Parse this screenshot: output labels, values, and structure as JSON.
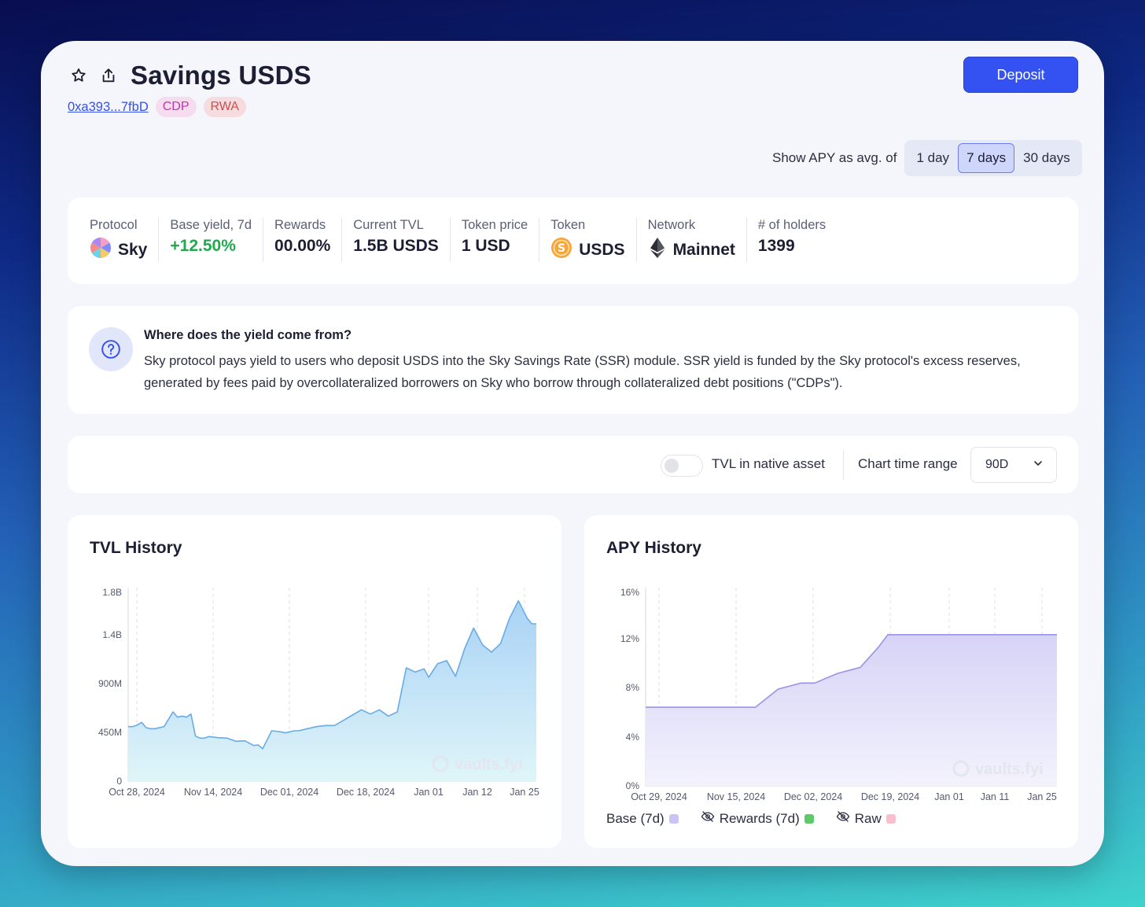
{
  "header": {
    "title": "Savings USDS",
    "address": "0xa393...7fbD",
    "tags": [
      "CDP",
      "RWA"
    ],
    "deposit_label": "Deposit",
    "star_icon": "star-icon",
    "share_icon": "share-icon"
  },
  "apy_toggle": {
    "label": "Show APY as avg. of",
    "options": [
      "1 day",
      "7 days",
      "30 days"
    ],
    "selected": "7 days"
  },
  "stats": [
    {
      "label": "Protocol",
      "value": "Sky",
      "icon": "sky-logo-icon"
    },
    {
      "label": "Base yield, 7d",
      "value": "+12.50%",
      "color": "#21a950"
    },
    {
      "label": "Rewards",
      "value": "00.00%"
    },
    {
      "label": "Current TVL",
      "value": "1.5B USDS"
    },
    {
      "label": "Token price",
      "value": "1 USD"
    },
    {
      "label": "Token",
      "value": "USDS",
      "icon": "usds-token-icon"
    },
    {
      "label": "Network",
      "value": "Mainnet",
      "icon": "ethereum-icon"
    },
    {
      "label": "# of holders",
      "value": "1399"
    }
  ],
  "info": {
    "title": "Where does the yield come from?",
    "text": "Sky protocol pays yield to users who deposit USDS into the Sky Savings Rate (SSR) module. SSR yield is funded by the Sky protocol's excess reserves, generated by fees paid by overcollateralized borrowers on Sky who borrow through collateralized debt positions (\"CDPs\")."
  },
  "controls": {
    "tvl_native_label": "TVL in native asset",
    "tvl_native_on": false,
    "range_label": "Chart time range",
    "range_value": "90D"
  },
  "watermark": "vaults.fyi",
  "chart_data": [
    {
      "type": "area",
      "title": "TVL History",
      "x_ticks": [
        "Oct 28, 2024",
        "Nov 14, 2024",
        "Dec 01, 2024",
        "Dec 18, 2024",
        "Jan 01",
        "Jan 12",
        "Jan 25"
      ],
      "y_ticks": [
        "0",
        "450M",
        "900M",
        "1.4B",
        "1.8B"
      ],
      "ylim": [
        0,
        1800000000
      ],
      "x": [
        "2024-10-27",
        "2024-10-28",
        "2024-10-29",
        "2024-10-30",
        "2024-10-31",
        "2024-11-01",
        "2024-11-02",
        "2024-11-04",
        "2024-11-06",
        "2024-11-07",
        "2024-11-08",
        "2024-11-09",
        "2024-11-10",
        "2024-11-11",
        "2024-11-12",
        "2024-11-13",
        "2024-11-14",
        "2024-11-16",
        "2024-11-18",
        "2024-11-20",
        "2024-11-22",
        "2024-11-24",
        "2024-11-25",
        "2024-11-26",
        "2024-11-28",
        "2024-11-30",
        "2024-12-01",
        "2024-12-02",
        "2024-12-03",
        "2024-12-04",
        "2024-12-06",
        "2024-12-08",
        "2024-12-10",
        "2024-12-12",
        "2024-12-14",
        "2024-12-16",
        "2024-12-18",
        "2024-12-20",
        "2024-12-22",
        "2024-12-24",
        "2024-12-26",
        "2024-12-28",
        "2024-12-30",
        "2025-01-01",
        "2025-01-02",
        "2025-01-04",
        "2025-01-06",
        "2025-01-08",
        "2025-01-10",
        "2025-01-12",
        "2025-01-14",
        "2025-01-16",
        "2025-01-18",
        "2025-01-20",
        "2025-01-22",
        "2025-01-24",
        "2025-01-25",
        "2025-01-26"
      ],
      "series": [
        {
          "values": [
            520000000,
            520000000,
            535000000,
            560000000,
            510000000,
            500000000,
            500000000,
            520000000,
            660000000,
            610000000,
            620000000,
            610000000,
            640000000,
            430000000,
            410000000,
            410000000,
            425000000,
            415000000,
            410000000,
            380000000,
            385000000,
            340000000,
            345000000,
            310000000,
            480000000,
            470000000,
            460000000,
            470000000,
            480000000,
            480000000,
            500000000,
            520000000,
            530000000,
            530000000,
            580000000,
            630000000,
            680000000,
            640000000,
            680000000,
            620000000,
            660000000,
            1080000000,
            1040000000,
            1070000000,
            990000000,
            1120000000,
            1150000000,
            1000000000,
            1260000000,
            1460000000,
            1300000000,
            1230000000,
            1310000000,
            1550000000,
            1720000000,
            1550000000,
            1500000000,
            1500000000
          ]
        }
      ],
      "color": "#5fa8e6"
    },
    {
      "type": "area",
      "title": "APY History",
      "x_ticks": [
        "Oct 29, 2024",
        "Nov 15, 2024",
        "Dec 02, 2024",
        "Dec 19, 2024",
        "Jan 01",
        "Jan 11",
        "Jan 25"
      ],
      "y_ticks": [
        "0%",
        "4%",
        "8%",
        "12%",
        "16%"
      ],
      "ylim": [
        0,
        16
      ],
      "x": [
        "2024-10-27",
        "2024-11-20",
        "2024-11-25",
        "2024-11-30",
        "2024-12-03",
        "2024-12-08",
        "2024-12-13",
        "2024-12-17",
        "2024-12-19",
        "2024-12-21",
        "2025-01-25"
      ],
      "series": [
        {
          "name": "Base (7d)",
          "values": [
            6.5,
            6.5,
            8.0,
            8.5,
            8.5,
            9.3,
            9.8,
            11.5,
            12.5,
            12.5,
            12.5
          ],
          "color": "#9a92e6"
        },
        {
          "name": "Rewards (7d)",
          "hidden": true,
          "color": "#4fc35b"
        },
        {
          "name": "Raw",
          "hidden": true,
          "color": "#f6a3b7"
        }
      ]
    }
  ]
}
